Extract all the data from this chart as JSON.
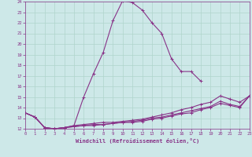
{
  "xlabel": "Windchill (Refroidissement éolien,°C)",
  "background_color": "#cde8e8",
  "grid_color": "#b0d4cc",
  "line_color": "#883388",
  "xmin": 0,
  "xmax": 23,
  "ymin": 12,
  "ymax": 24,
  "curve1_x": [
    0,
    1,
    2,
    3,
    4,
    5,
    6,
    7,
    8,
    9,
    10,
    11,
    12,
    13,
    14,
    15,
    16,
    17,
    18,
    19,
    20,
    21,
    22,
    23
  ],
  "curve1_y": [
    13.5,
    13.1,
    12.1,
    12.0,
    12.1,
    12.3,
    15.0,
    17.2,
    19.2,
    22.2,
    24.1,
    23.9,
    23.2,
    22.0,
    21.0,
    18.6,
    17.4,
    17.4,
    16.5,
    null,
    null,
    null,
    null,
    null
  ],
  "curve2_x": [
    0,
    1,
    2,
    3,
    4,
    5,
    6,
    7,
    8,
    9,
    10,
    11,
    12,
    13,
    14,
    15,
    16,
    17,
    18,
    19,
    20,
    21,
    22,
    23
  ],
  "curve2_y": [
    13.5,
    13.1,
    12.1,
    12.0,
    12.1,
    12.3,
    12.4,
    12.5,
    12.6,
    12.6,
    12.7,
    12.8,
    12.9,
    13.1,
    13.3,
    13.5,
    13.8,
    14.0,
    14.3,
    14.5,
    15.1,
    14.8,
    14.5,
    15.1
  ],
  "curve3_x": [
    0,
    1,
    2,
    3,
    4,
    5,
    6,
    7,
    8,
    9,
    10,
    11,
    12,
    13,
    14,
    15,
    16,
    17,
    18,
    19,
    20,
    21,
    22,
    23
  ],
  "curve3_y": [
    13.5,
    13.1,
    12.1,
    12.0,
    12.1,
    12.2,
    12.3,
    12.4,
    12.4,
    12.5,
    12.6,
    12.7,
    12.8,
    13.0,
    13.1,
    13.3,
    13.5,
    13.7,
    13.9,
    14.1,
    14.6,
    14.3,
    14.1,
    15.1
  ],
  "curve4_x": [
    0,
    1,
    2,
    3,
    4,
    5,
    6,
    7,
    8,
    9,
    10,
    11,
    12,
    13,
    14,
    15,
    16,
    17,
    18,
    19,
    20,
    21,
    22,
    23
  ],
  "curve4_y": [
    13.5,
    13.1,
    12.1,
    12.0,
    12.1,
    12.2,
    12.3,
    12.3,
    12.4,
    12.5,
    12.6,
    12.6,
    12.7,
    12.9,
    13.0,
    13.2,
    13.4,
    13.5,
    13.8,
    14.0,
    14.4,
    14.2,
    14.0,
    15.1
  ]
}
